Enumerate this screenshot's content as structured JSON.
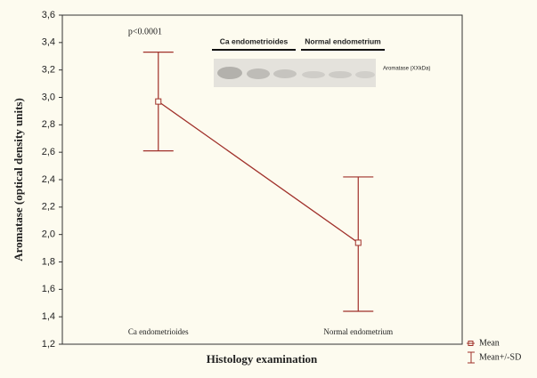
{
  "chart_data": {
    "type": "line",
    "y_label": "Aromatase (optical density units)",
    "x_label": "Histology examination",
    "categories": [
      "Ca endometrioides",
      "Normal endometrium"
    ],
    "series": [
      {
        "name": "Mean",
        "color": "#a0302a",
        "values": [
          2.97,
          1.94
        ]
      }
    ],
    "error_bars": {
      "name": "Mean+/-SD",
      "color": "#a0302a",
      "low": [
        2.61,
        1.44
      ],
      "high": [
        3.33,
        2.42
      ]
    },
    "ylim": [
      1.2,
      3.6
    ],
    "yticks": [
      {
        "value": 1.2,
        "label": "1,2"
      },
      {
        "value": 1.4,
        "label": "1,4"
      },
      {
        "value": 1.6,
        "label": "1,6"
      },
      {
        "value": 1.8,
        "label": "1,8"
      },
      {
        "value": 2.0,
        "label": "2,0"
      },
      {
        "value": 2.2,
        "label": "2,2"
      },
      {
        "value": 2.4,
        "label": "2,4"
      },
      {
        "value": 2.6,
        "label": "2,6"
      },
      {
        "value": 2.8,
        "label": "2,8"
      },
      {
        "value": 3.0,
        "label": "3,0"
      },
      {
        "value": 3.2,
        "label": "3,2"
      },
      {
        "value": 3.4,
        "label": "3,4"
      },
      {
        "value": 3.6,
        "label": "3,6"
      }
    ],
    "annotation": "p<0.0001",
    "inset": {
      "groups": [
        "Ca endometrioides",
        "Normal endometrium"
      ],
      "band_label": "Aromatase (XXkDa)"
    }
  }
}
